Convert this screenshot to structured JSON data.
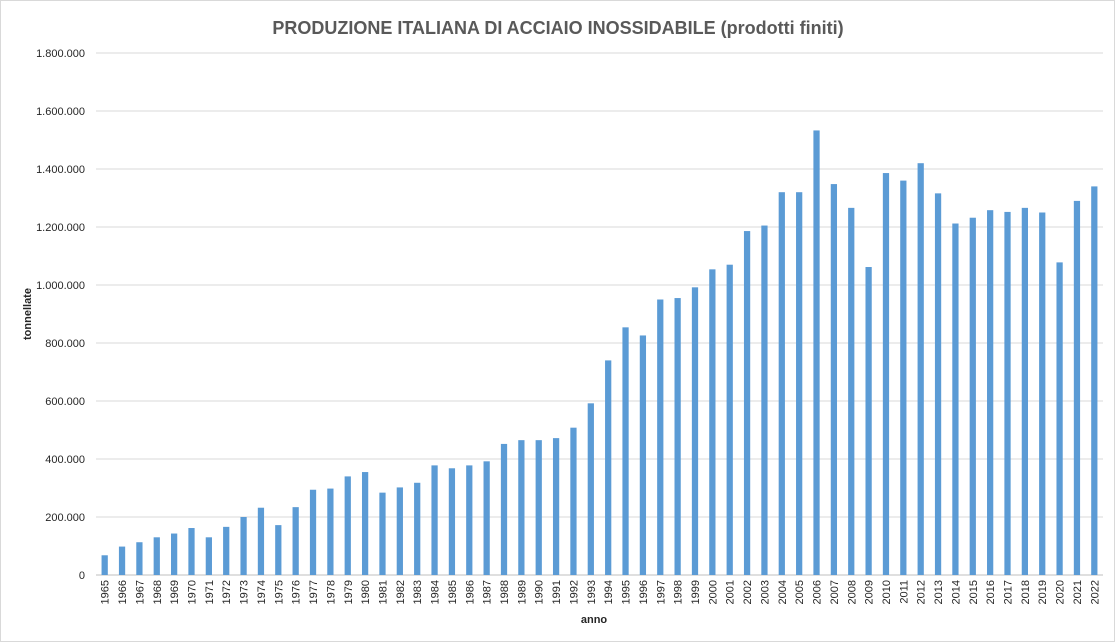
{
  "chart_data": {
    "type": "bar",
    "title": "PRODUZIONE ITALIANA DI ACCIAIO INOSSIDABILE (prodotti finiti)",
    "xlabel": "anno",
    "ylabel": "tonnellate",
    "ylim": [
      0,
      1800000
    ],
    "yticks": [
      0,
      200000,
      400000,
      600000,
      800000,
      1000000,
      1200000,
      1400000,
      1600000,
      1800000
    ],
    "ytick_labels": [
      "0",
      "200.000",
      "400.000",
      "600.000",
      "800.000",
      "1.000.000",
      "1.200.000",
      "1.400.000",
      "1.600.000",
      "1.800.000"
    ],
    "grid": true,
    "bar_color": "#5b9bd5",
    "categories": [
      "1965",
      "1966",
      "1967",
      "1968",
      "1969",
      "1970",
      "1971",
      "1972",
      "1973",
      "1974",
      "1975",
      "1976",
      "1977",
      "1978",
      "1979",
      "1980",
      "1981",
      "1982",
      "1983",
      "1984",
      "1985",
      "1986",
      "1987",
      "1988",
      "1989",
      "1990",
      "1991",
      "1992",
      "1993",
      "1994",
      "1995",
      "1996",
      "1997",
      "1998",
      "1999",
      "2000",
      "2001",
      "2002",
      "2003",
      "2004",
      "2005",
      "2006",
      "2007",
      "2008",
      "2009",
      "2010",
      "2011",
      "2012",
      "2013",
      "2014",
      "2015",
      "2016",
      "2017",
      "2018",
      "2019",
      "2020",
      "2021",
      "2022"
    ],
    "values": [
      68000,
      98000,
      113000,
      130000,
      143000,
      162000,
      130000,
      166000,
      200000,
      232000,
      172000,
      234000,
      294000,
      298000,
      340000,
      355000,
      284000,
      302000,
      318000,
      378000,
      368000,
      378000,
      392000,
      452000,
      465000,
      465000,
      472000,
      508000,
      592000,
      740000,
      854000,
      826000,
      950000,
      955000,
      992000,
      1054000,
      1070000,
      1186000,
      1205000,
      1320000,
      1320000,
      1533000,
      1348000,
      1266000,
      1062000,
      1386000,
      1360000,
      1420000,
      1316000,
      1212000,
      1232000,
      1258000,
      1252000,
      1266000,
      1250000,
      1078000,
      1290000,
      1340000
    ]
  }
}
